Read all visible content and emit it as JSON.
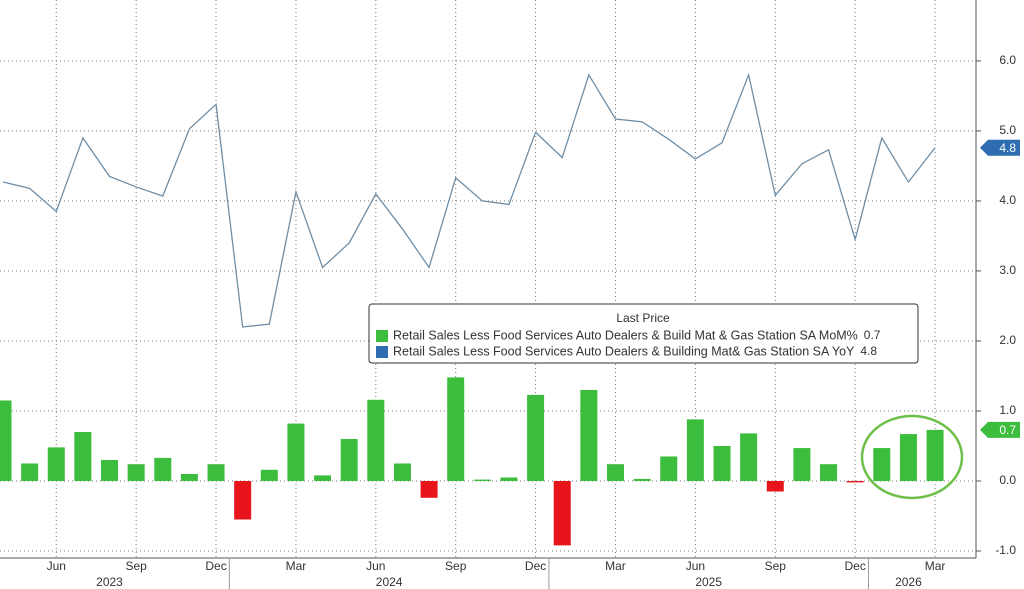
{
  "chart_data": {
    "type": "bar",
    "categories": [
      null,
      null,
      "Jun",
      null,
      null,
      "Sep",
      null,
      null,
      "Dec",
      null,
      null,
      "Mar",
      null,
      null,
      "Jun",
      null,
      null,
      "Sep",
      null,
      null,
      "Dec",
      null,
      null,
      "Mar",
      null,
      null,
      "Jun",
      null,
      null,
      "Sep",
      null,
      null,
      "Dec",
      null,
      null,
      "Mar"
    ],
    "years": [
      "2023",
      "2024",
      "2025",
      "2026"
    ],
    "legend_title": "Last Price",
    "series": [
      {
        "name": "Retail Sales Less Food Services Auto Dealers & Build Mat & Gas Station SA MoM%",
        "type": "bar",
        "color": "#3dbd3d",
        "negative_color": "#e8141b",
        "last_value_label": "0.7",
        "values": [
          1.15,
          0.25,
          0.48,
          0.7,
          0.3,
          0.24,
          0.33,
          0.1,
          0.24,
          -0.55,
          0.16,
          0.82,
          0.08,
          0.6,
          1.16,
          0.25,
          -0.24,
          1.48,
          0.02,
          0.05,
          1.23,
          -0.92,
          1.3,
          0.24,
          0.03,
          0.35,
          0.88,
          0.5,
          0.68,
          -0.15,
          0.47,
          0.24,
          -0.02,
          0.47,
          0.67,
          0.73
        ]
      },
      {
        "name": "Retail Sales Less Food Services Auto Dealers & Building Mat& Gas Station SA YoY",
        "type": "line",
        "color": "#6f8ea6",
        "legend_color": "#2f6db3",
        "last_value_label": "4.8",
        "values": [
          4.27,
          4.18,
          3.85,
          4.9,
          4.35,
          4.2,
          4.07,
          5.03,
          5.38,
          2.2,
          2.24,
          4.13,
          3.05,
          3.4,
          4.1,
          3.6,
          3.05,
          4.33,
          4.0,
          3.95,
          4.98,
          4.62,
          5.8,
          5.17,
          5.13,
          4.88,
          4.6,
          4.83,
          5.8,
          4.08,
          4.53,
          4.73,
          3.45,
          4.9,
          4.27,
          4.76
        ]
      }
    ],
    "ylim": [
      -1.1,
      6.87
    ],
    "yticks": [
      {
        "value": -1,
        "label": "-1.0"
      },
      {
        "value": 0,
        "label": "0.0"
      },
      {
        "value": 1,
        "label": "1.0"
      },
      {
        "value": 2,
        "label": "2.0"
      },
      {
        "value": 3,
        "label": "3.0"
      },
      {
        "value": 4,
        "label": "4.0"
      },
      {
        "value": 5,
        "label": "5.0"
      },
      {
        "value": 6,
        "label": "6.0"
      }
    ],
    "grid": true
  }
}
